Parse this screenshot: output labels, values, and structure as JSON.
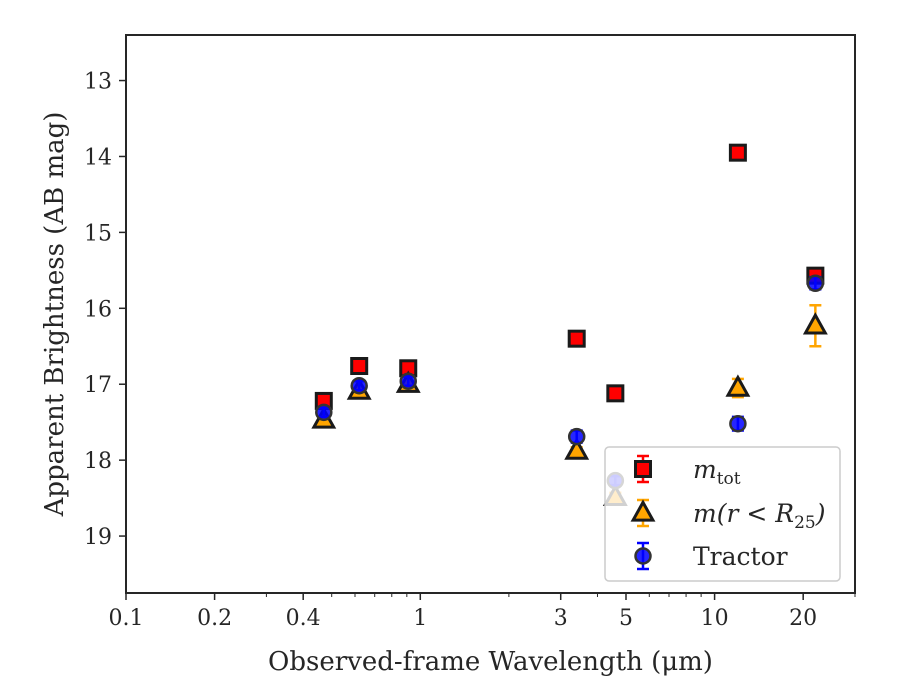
{
  "chart_data": {
    "type": "scatter",
    "title": "",
    "xlabel": "Observed-frame Wavelength (μm)",
    "ylabel": "Apparent Brightness (AB mag)",
    "x_scale": "log",
    "y_inverted": true,
    "xlim": [
      0.1,
      30
    ],
    "ylim": [
      19.75,
      12.4
    ],
    "grid": false,
    "legend_position": "bottom-right",
    "x_ticks": [
      {
        "value": 0.1,
        "label": "0.1"
      },
      {
        "value": 0.2,
        "label": "0.2"
      },
      {
        "value": 0.4,
        "label": "0.4"
      },
      {
        "value": 1,
        "label": "1"
      },
      {
        "value": 3,
        "label": "3"
      },
      {
        "value": 5,
        "label": "5"
      },
      {
        "value": 10,
        "label": "10"
      },
      {
        "value": 20,
        "label": "20"
      }
    ],
    "y_ticks": [
      {
        "value": 13,
        "label": "13"
      },
      {
        "value": 14,
        "label": "14"
      },
      {
        "value": 15,
        "label": "15"
      },
      {
        "value": 16,
        "label": "16"
      },
      {
        "value": 17,
        "label": "17"
      },
      {
        "value": 18,
        "label": "18"
      },
      {
        "value": 19,
        "label": "19"
      }
    ],
    "series": [
      {
        "name": "m_tot",
        "legend_main": "m",
        "legend_sub": "tot",
        "marker": "square",
        "fill": "#ff0000",
        "errcolor": "#ff0000",
        "points": [
          {
            "x": 0.47,
            "y": 17.22,
            "err": 0.05
          },
          {
            "x": 0.62,
            "y": 16.76,
            "err": 0.04
          },
          {
            "x": 0.91,
            "y": 16.79,
            "err": 0.04
          },
          {
            "x": 3.4,
            "y": 16.4,
            "err": 0.03
          },
          {
            "x": 4.6,
            "y": 17.12,
            "err": 0.04
          },
          {
            "x": 12.0,
            "y": 13.95,
            "err": 0.03
          },
          {
            "x": 22.0,
            "y": 15.57,
            "err": 0.05
          }
        ]
      },
      {
        "name": "m(r < R25)",
        "legend_main": "m(r < R",
        "legend_sub": "25",
        "legend_tail": ")",
        "marker": "triangle",
        "fill": "#ffa500",
        "errcolor": "#ffa500",
        "points": [
          {
            "x": 0.47,
            "y": 17.47,
            "err": 0.04
          },
          {
            "x": 0.62,
            "y": 17.09,
            "err": 0.04
          },
          {
            "x": 0.91,
            "y": 17.0,
            "err": 0.04
          },
          {
            "x": 3.4,
            "y": 17.88,
            "err": 0.05
          },
          {
            "x": 4.6,
            "y": 18.49,
            "err": 0.06
          },
          {
            "x": 12.0,
            "y": 17.05,
            "err": 0.12
          },
          {
            "x": 22.0,
            "y": 16.23,
            "err": 0.27
          }
        ]
      },
      {
        "name": "Tractor",
        "legend_main": "Tractor",
        "marker": "circle",
        "fill": "#0000ff",
        "errcolor": "#0000ff",
        "points": [
          {
            "x": 0.47,
            "y": 17.37,
            "err": 0.06
          },
          {
            "x": 0.62,
            "y": 17.02,
            "err": 0.06
          },
          {
            "x": 0.91,
            "y": 16.96,
            "err": 0.06
          },
          {
            "x": 3.4,
            "y": 17.69,
            "err": 0.08
          },
          {
            "x": 4.6,
            "y": 18.27,
            "err": 0.06
          },
          {
            "x": 12.0,
            "y": 17.52,
            "err": 0.09
          },
          {
            "x": 22.0,
            "y": 15.67,
            "err": 0.08
          }
        ]
      }
    ]
  }
}
